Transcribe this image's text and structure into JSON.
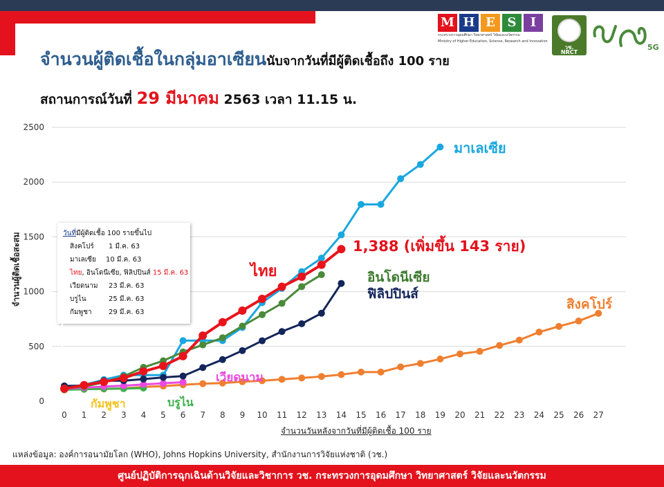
{
  "header": {
    "title_main": "จำนวนผู้ติดเชื้อในกลุ่มอาเซียน",
    "title_sub": "นับจากวันที่มีผู้ติดเชื้อถึง 100 ราย",
    "situation_prefix": "สถานการณ์วันที่",
    "situation_date": "29 มีนาคม",
    "situation_suffix": "2563 เวลา 11.15 น."
  },
  "logos": {
    "mhesi_letters": [
      "M",
      "H",
      "E",
      "S",
      "I"
    ],
    "mhesi_colors": [
      "#e3121c",
      "#1a3a8a",
      "#f39a1e",
      "#2e8b3a",
      "#7b3fa0"
    ],
    "mhesi_caption_th": "กระทรวงการอุดมศึกษา วิทยาศาสตร์ วิจัยและนวัตกรรม",
    "mhesi_caption_en": "Ministry of Higher Education, Science, Research and Innovation",
    "nrct_label_th": "วช.",
    "nrct_label_en": "NRCT",
    "fiveg_label": "5G"
  },
  "infobox": {
    "heading_underlined": "วันที่",
    "heading_rest": "มีผู้ติดเชื้อ 100 รายขึ้นไป",
    "rows": [
      {
        "label": "สิงคโปร์",
        "date": "1 มี.ค. 63"
      },
      {
        "label": "มาเลเซีย",
        "date": "10 มี.ค. 63"
      },
      {
        "label_red": "ไทย",
        "label_rest": ", อินโดนีเซีย, ฟิลิปปินส์",
        "date": "15 มี.ค. 63"
      },
      {
        "label": "เวียดนาม",
        "date": "23 มี.ค. 63"
      },
      {
        "label": "บรูไน",
        "date": "25 มี.ค. 63"
      },
      {
        "label": "กัมพูชา",
        "date": "29 มี.ค. 63"
      }
    ]
  },
  "chart_data": {
    "type": "line",
    "title": "จำนวนผู้ติดเชื้อในกลุ่มอาเซียนนับจากวันที่มีผู้ติดเชื้อถึง 100 ราย",
    "xlabel": "จำนวนวันหลังจากวันที่มีผู้ติดเชื้อ 100 ราย",
    "ylabel": "จำนวนผู้ติดเชื้อสะสม",
    "xlim": [
      0,
      27
    ],
    "ylim": [
      0,
      2500
    ],
    "x_ticks": [
      0,
      1,
      2,
      3,
      4,
      5,
      6,
      7,
      8,
      9,
      10,
      11,
      12,
      13,
      14,
      15,
      16,
      17,
      18,
      19,
      20,
      21,
      22,
      23,
      24,
      25,
      26,
      27
    ],
    "y_ticks": [
      0,
      500,
      1000,
      1500,
      2000,
      2500
    ],
    "grid": true,
    "annotation": {
      "value": "1,388",
      "text": "(เพิ่มขึ้น 143 ราย)",
      "color": "#e3121c"
    },
    "series": [
      {
        "name": "สิงคโปร์",
        "color": "#ef7f2f",
        "values": [
          108,
          110,
          112,
          117,
          130,
          138,
          150,
          160,
          166,
          178,
          187,
          200,
          212,
          226,
          243,
          266,
          266,
          313,
          345,
          385,
          432,
          455,
          509,
          558,
          631,
          683,
          732,
          802
        ]
      },
      {
        "name": "มาเลเซีย",
        "color": "#1aa7e0",
        "values": [
          129,
          149,
          197,
          238,
          238,
          238,
          553,
          553,
          553,
          673,
          900,
          1030,
          1183,
          1306,
          1518,
          1796,
          1796,
          2031,
          2161,
          2320
        ]
      },
      {
        "name": "ไทย",
        "color": "#e8141c",
        "values": [
          114,
          147,
          177,
          212,
          272,
          322,
          411,
          599,
          721,
          827,
          934,
          1045,
          1136,
          1245,
          1388
        ]
      },
      {
        "name": "อินโดนีเซีย",
        "color": "#4a8a3a",
        "values": [
          117,
          134,
          172,
          227,
          309,
          369,
          450,
          514,
          579,
          686,
          790,
          893,
          1046,
          1155
        ]
      },
      {
        "name": "ฟิลิปปินส์",
        "color": "#13255a",
        "values": [
          140,
          142,
          187,
          187,
          202,
          217,
          230,
          307,
          380,
          462,
          552,
          636,
          707,
          803,
          1075
        ]
      },
      {
        "name": "เวียดนาม",
        "color": "#e84ae0",
        "values": [
          113,
          123,
          134,
          141,
          153,
          163,
          174
        ]
      },
      {
        "name": "บรูไน",
        "color": "#3cb04a",
        "values": [
          104,
          109,
          114,
          115,
          120
        ]
      },
      {
        "name": "กัมพูชา",
        "color": "#f4c21a",
        "values": [
          103
        ]
      }
    ],
    "series_label_colors": {
      "สิงคโปร์": "#ef7f2f",
      "มาเลเซีย": "#1aa7e0",
      "ไทย": "#e8141c",
      "อินโดนีเซีย": "#3d7a2e",
      "ฟิลิปปินส์": "#13255a",
      "เวียดนาม": "#e84ae0",
      "บรูไน": "#3cb04a",
      "กัมพูชา": "#f4c21a"
    }
  },
  "source": "แหล่งข้อมูล: องค์การอนามัยโลก (WHO), Johns Hopkins University, สำนักงานการวิจัยแห่งชาติ (วช.)",
  "footer": "ศูนย์ปฏิบัติการฉุกเฉินด้านวิจัยและวิชาการ   วช.   กระทรวงการอุดมศึกษา วิทยาศาสตร์ วิจัยและนวัตกรรม"
}
